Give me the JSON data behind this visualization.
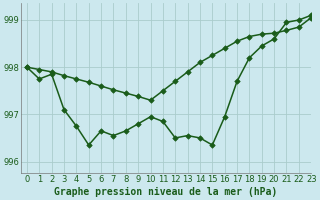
{
  "title": "Graphe pression niveau de la mer (hPa)",
  "background_color": "#cce8ee",
  "grid_color": "#aacccc",
  "line_color": "#1a5c1a",
  "xlim": [
    -0.5,
    23
  ],
  "ylim": [
    995.75,
    999.35
  ],
  "yticks": [
    996,
    997,
    998,
    999
  ],
  "xticks": [
    0,
    1,
    2,
    3,
    4,
    5,
    6,
    7,
    8,
    9,
    10,
    11,
    12,
    13,
    14,
    15,
    16,
    17,
    18,
    19,
    20,
    21,
    22,
    23
  ],
  "series1_x": [
    0,
    1,
    2,
    3,
    4,
    5,
    6,
    7,
    8,
    9,
    10,
    11,
    12,
    13,
    14,
    15,
    16,
    17,
    18,
    19,
    20,
    21,
    22,
    23
  ],
  "series1_y": [
    998.0,
    997.75,
    997.85,
    997.1,
    996.75,
    996.35,
    996.65,
    996.55,
    996.65,
    996.8,
    996.95,
    996.85,
    996.5,
    996.55,
    996.5,
    996.35,
    996.95,
    997.7,
    998.2,
    998.45,
    998.6,
    998.95,
    999.0,
    999.1
  ],
  "series2_x": [
    0,
    1,
    2,
    3,
    4,
    5,
    6,
    7,
    8,
    9,
    10,
    11,
    12,
    13,
    14,
    15,
    16,
    17,
    18,
    19,
    20,
    21,
    22,
    23
  ],
  "series2_y": [
    998.0,
    997.95,
    997.9,
    997.82,
    997.75,
    997.68,
    997.6,
    997.52,
    997.45,
    997.38,
    997.3,
    997.5,
    997.7,
    997.9,
    998.1,
    998.25,
    998.4,
    998.55,
    998.65,
    998.7,
    998.72,
    998.78,
    998.85,
    999.05
  ],
  "xlabel_fontsize": 7,
  "tick_fontsize": 6,
  "linewidth": 1.1,
  "marker": "D",
  "markersize": 2.8
}
